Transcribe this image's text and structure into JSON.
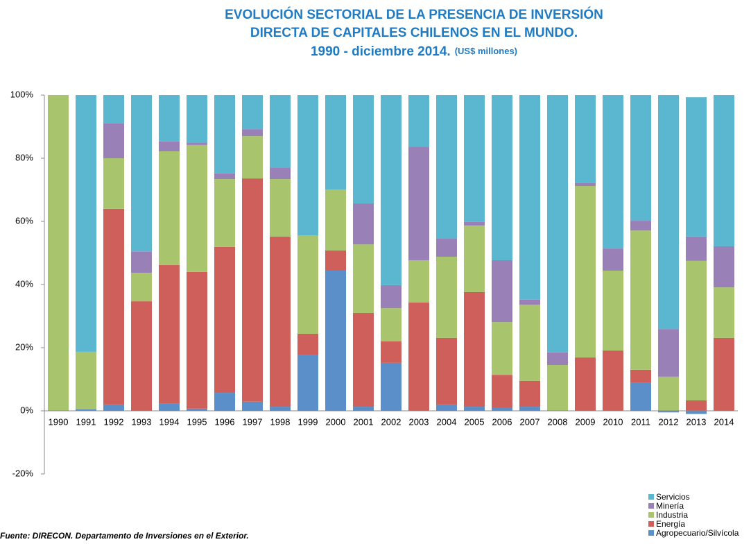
{
  "chart_data": {
    "type": "stacked_bar",
    "title": [
      "EVOLUCIÓN SECTORIAL DE LA PRESENCIA DE INVERSIÓN",
      "DIRECTA DE CAPITALES CHILENOS EN EL MUNDO.",
      "1990 - diciembre 2014."
    ],
    "subtitle": "(US$ millones)",
    "source": "Fuente: DIRECON.  Departamento de Inversiones en el Exterior.",
    "categories": [
      "1990",
      "1991",
      "1992",
      "1993",
      "1994",
      "1995",
      "1996",
      "1997",
      "1998",
      "1999",
      "2000",
      "2001",
      "2002",
      "2003",
      "2004",
      "2005",
      "2006",
      "2007",
      "2008",
      "2009",
      "2010",
      "2011",
      "2012",
      "2013",
      "2014"
    ],
    "series": [
      {
        "name": "Agropecuario/Silvícola",
        "color": "#5b8fc9",
        "values": [
          0,
          0.5,
          2,
          0,
          2.4,
          0.7,
          5.7,
          2.9,
          1.3,
          17.6,
          44.4,
          1.3,
          15.2,
          0,
          2,
          1.3,
          1.1,
          1.3,
          0,
          0,
          0,
          9,
          -0.5,
          -1,
          0
        ]
      },
      {
        "name": "Energía",
        "color": "#cf5f5a",
        "values": [
          0,
          0,
          62,
          34.7,
          43.8,
          43.3,
          46.2,
          70.7,
          53.9,
          6.8,
          6.4,
          29.7,
          6.8,
          34.3,
          21.1,
          36.3,
          10.3,
          8.2,
          0,
          16.9,
          19.1,
          4,
          0,
          3.3,
          23.1
        ]
      },
      {
        "name": "Industria",
        "color": "#a8c46c",
        "values": [
          100,
          18.2,
          16,
          9,
          36,
          40.2,
          21.5,
          13.4,
          18.2,
          31.2,
          19.3,
          21.7,
          10.5,
          13.4,
          25.7,
          21.1,
          16.7,
          24.1,
          14.5,
          54.3,
          25.3,
          44.1,
          10.8,
          44.2,
          16
        ]
      },
      {
        "name": "Minería",
        "color": "#9980b7",
        "values": [
          0,
          0,
          11,
          6.8,
          3.1,
          0.8,
          1.8,
          2.2,
          3.7,
          0,
          0,
          13,
          7.3,
          36,
          5.7,
          1.1,
          19.6,
          1.6,
          4,
          0.9,
          7,
          3.1,
          15.1,
          7.7,
          13
        ]
      },
      {
        "name": "Servicios",
        "color": "#5bb7d0",
        "values": [
          0,
          81.3,
          9,
          49.5,
          14.7,
          15,
          24.8,
          10.8,
          22.9,
          44.4,
          29.9,
          34.3,
          60.2,
          16.3,
          45.5,
          40.2,
          52.3,
          64.8,
          81.5,
          27.9,
          48.6,
          39.8,
          74.1,
          44.1,
          47.9
        ]
      }
    ],
    "ylim": [
      -20,
      100
    ],
    "yticks": [
      {
        "value": -20,
        "label": "-20%"
      },
      {
        "value": 0,
        "label": "0%"
      },
      {
        "value": 20,
        "label": "20%"
      },
      {
        "value": 40,
        "label": "40%"
      },
      {
        "value": 60,
        "label": "60%"
      },
      {
        "value": 80,
        "label": "80%"
      },
      {
        "value": 100,
        "label": "100%"
      }
    ],
    "grid": false,
    "legend": "bottom-right"
  }
}
